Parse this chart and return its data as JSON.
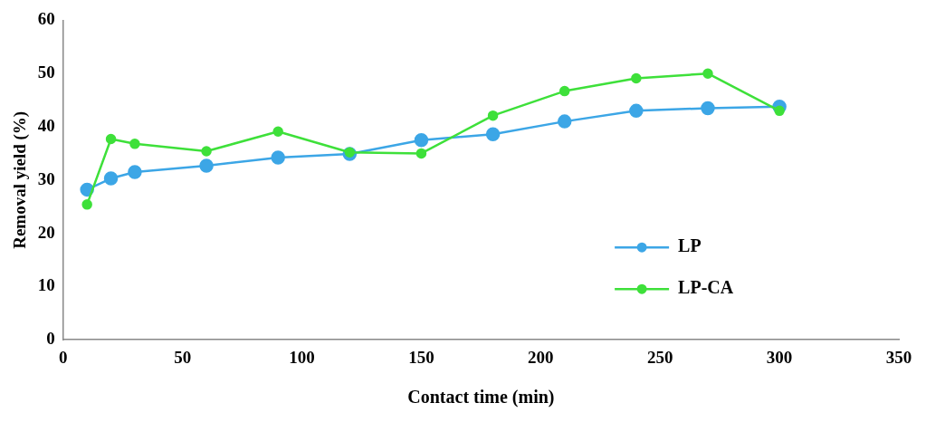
{
  "chart_data": {
    "type": "line",
    "xlabel": "Contact time (min)",
    "ylabel": "Removal yield (%)",
    "x": [
      10,
      20,
      30,
      60,
      90,
      120,
      150,
      180,
      210,
      240,
      270,
      300
    ],
    "series": [
      {
        "name": "LP",
        "color": "#3ca6e6",
        "values": [
          28.2,
          30.3,
          31.5,
          32.7,
          34.2,
          34.9,
          37.5,
          38.6,
          41.0,
          43.0,
          43.5,
          43.8
        ]
      },
      {
        "name": "LP-CA",
        "color": "#3ee03a",
        "values": [
          25.4,
          37.7,
          36.8,
          35.4,
          39.1,
          35.2,
          35.0,
          42.1,
          46.7,
          49.1,
          50.0,
          43.0
        ]
      }
    ],
    "xlim": [
      0,
      350
    ],
    "xticks": [
      0,
      50,
      100,
      150,
      200,
      250,
      300,
      350
    ],
    "ylim": [
      0,
      60
    ],
    "yticks": [
      0,
      10,
      20,
      30,
      40,
      50,
      60
    ],
    "grid": false,
    "legend": "bottom right",
    "marker": "circle",
    "line_style": "solid"
  }
}
